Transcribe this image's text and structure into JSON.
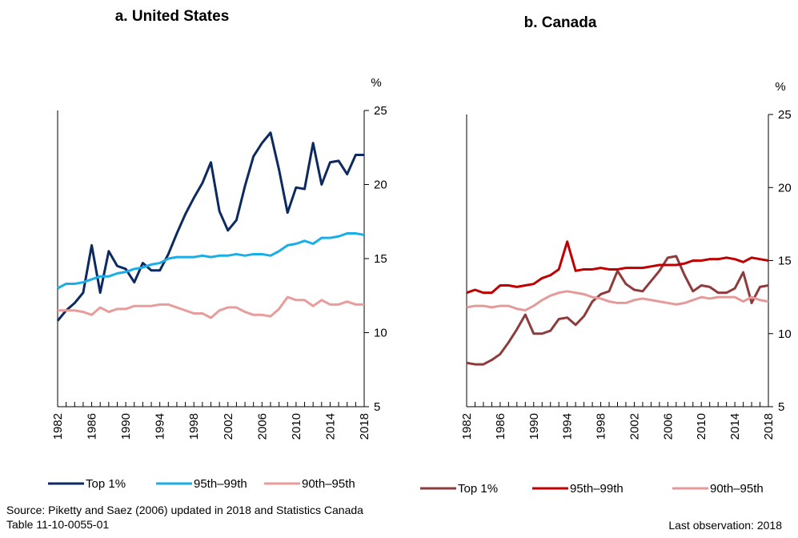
{
  "chart_data": [
    {
      "type": "line",
      "title": "a. United States",
      "y_axis_label": "%",
      "x": [
        1982,
        1983,
        1984,
        1985,
        1986,
        1987,
        1988,
        1989,
        1990,
        1991,
        1992,
        1993,
        1994,
        1995,
        1996,
        1997,
        1998,
        1999,
        2000,
        2001,
        2002,
        2003,
        2004,
        2005,
        2006,
        2007,
        2008,
        2009,
        2010,
        2011,
        2012,
        2013,
        2014,
        2015,
        2016,
        2017,
        2018
      ],
      "xlim": [
        1982,
        2018
      ],
      "xticks": [
        1982,
        1986,
        1990,
        1994,
        1998,
        2002,
        2006,
        2010,
        2014,
        2018
      ],
      "ylim": [
        5,
        25
      ],
      "yticks": [
        5,
        10,
        15,
        20,
        25
      ],
      "series": [
        {
          "name": "Top 1%",
          "color": "#0c2a5f",
          "values": [
            10.8,
            11.5,
            12.0,
            12.7,
            15.9,
            12.7,
            15.5,
            14.5,
            14.3,
            13.4,
            14.7,
            14.2,
            14.2,
            15.3,
            16.7,
            18.0,
            19.1,
            20.1,
            21.5,
            18.2,
            16.9,
            17.6,
            19.9,
            21.9,
            22.8,
            23.5,
            21.0,
            18.1,
            19.8,
            19.7,
            22.8,
            20.0,
            21.5,
            21.6,
            20.7,
            22.0,
            22.0
          ]
        },
        {
          "name": "95th–99th",
          "color": "#1aaee6",
          "values": [
            13.0,
            13.3,
            13.3,
            13.4,
            13.6,
            13.8,
            13.8,
            14.0,
            14.1,
            14.3,
            14.4,
            14.6,
            14.7,
            15.0,
            15.1,
            15.1,
            15.1,
            15.2,
            15.1,
            15.2,
            15.2,
            15.3,
            15.2,
            15.3,
            15.3,
            15.2,
            15.5,
            15.9,
            16.0,
            16.2,
            16.0,
            16.4,
            16.4,
            16.5,
            16.7,
            16.7,
            16.6
          ]
        },
        {
          "name": "90th–95th",
          "color": "#e89c9c",
          "values": [
            11.5,
            11.5,
            11.5,
            11.4,
            11.2,
            11.7,
            11.4,
            11.6,
            11.6,
            11.8,
            11.8,
            11.8,
            11.9,
            11.9,
            11.7,
            11.5,
            11.3,
            11.3,
            11.0,
            11.5,
            11.7,
            11.7,
            11.4,
            11.2,
            11.2,
            11.1,
            11.6,
            12.4,
            12.2,
            12.2,
            11.8,
            12.2,
            11.9,
            11.9,
            12.1,
            11.9,
            11.9
          ]
        }
      ]
    },
    {
      "type": "line",
      "title": "b. Canada",
      "y_axis_label": "%",
      "x": [
        1982,
        1983,
        1984,
        1985,
        1986,
        1987,
        1988,
        1989,
        1990,
        1991,
        1992,
        1993,
        1994,
        1995,
        1996,
        1997,
        1998,
        1999,
        2000,
        2001,
        2002,
        2003,
        2004,
        2005,
        2006,
        2007,
        2008,
        2009,
        2010,
        2011,
        2012,
        2013,
        2014,
        2015,
        2016,
        2017,
        2018
      ],
      "xlim": [
        1982,
        2018
      ],
      "xticks": [
        1982,
        1986,
        1990,
        1994,
        1998,
        2002,
        2006,
        2010,
        2014,
        2018
      ],
      "ylim": [
        5,
        25
      ],
      "yticks": [
        5,
        10,
        15,
        20,
        25
      ],
      "series": [
        {
          "name": "Top 1%",
          "color": "#8e3b3b",
          "values": [
            8.0,
            7.9,
            7.9,
            8.2,
            8.6,
            9.4,
            10.3,
            11.3,
            10.0,
            10.0,
            10.2,
            11.0,
            11.1,
            10.6,
            11.2,
            12.2,
            12.7,
            12.9,
            14.3,
            13.4,
            13.0,
            12.9,
            13.6,
            14.3,
            15.2,
            15.3,
            14.0,
            12.9,
            13.3,
            13.2,
            12.8,
            12.8,
            13.1,
            14.2,
            12.1,
            13.2,
            13.3
          ]
        },
        {
          "name": "95th–99th",
          "color": "#c00000",
          "values": [
            12.8,
            13.0,
            12.8,
            12.8,
            13.3,
            13.3,
            13.2,
            13.3,
            13.4,
            13.8,
            14.0,
            14.4,
            16.3,
            14.3,
            14.4,
            14.4,
            14.5,
            14.4,
            14.4,
            14.5,
            14.5,
            14.5,
            14.6,
            14.7,
            14.7,
            14.7,
            14.8,
            15.0,
            15.0,
            15.1,
            15.1,
            15.2,
            15.1,
            14.9,
            15.2,
            15.1,
            15.0
          ]
        },
        {
          "name": "90th–95th",
          "color": "#e59a9a",
          "values": [
            11.8,
            11.9,
            11.9,
            11.8,
            11.9,
            11.9,
            11.7,
            11.6,
            11.9,
            12.3,
            12.6,
            12.8,
            12.9,
            12.8,
            12.7,
            12.5,
            12.4,
            12.2,
            12.1,
            12.1,
            12.3,
            12.4,
            12.3,
            12.2,
            12.1,
            12.0,
            12.1,
            12.3,
            12.5,
            12.4,
            12.5,
            12.5,
            12.5,
            12.2,
            12.5,
            12.3,
            12.2
          ]
        }
      ]
    }
  ],
  "source": "Source: Piketty and Saez (2006) updated in 2018 and Statistics Canada Table 11-10-0055-01",
  "note": "Last observation: 2018"
}
